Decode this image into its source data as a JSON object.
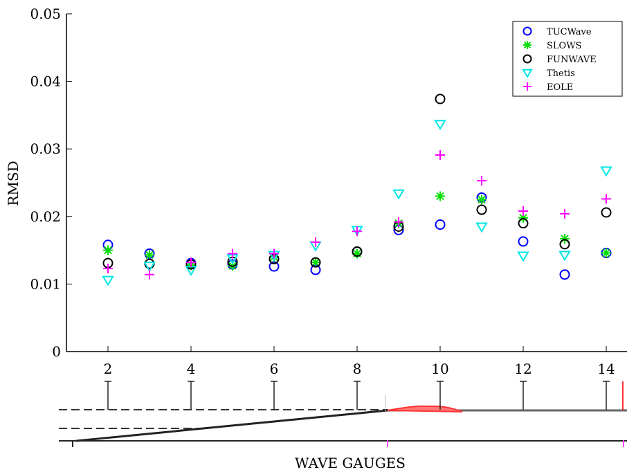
{
  "chart_data": {
    "type": "scatter",
    "ylabel": "RMSD",
    "xlabel": "WAVE GAUGES",
    "xlim": [
      1,
      14.5
    ],
    "ylim": [
      0,
      0.05
    ],
    "x_ticks": [
      "2",
      "4",
      "6",
      "8",
      "10",
      "12",
      "14"
    ],
    "x_tick_values": [
      2,
      4,
      6,
      8,
      10,
      12,
      14
    ],
    "y_ticks": [
      "0",
      "0.01",
      "0.02",
      "0.03",
      "0.04",
      "0.05"
    ],
    "y_tick_values": [
      0,
      0.01,
      0.02,
      0.03,
      0.04,
      0.05
    ],
    "legend_position": "top-right",
    "grid": false,
    "series": [
      {
        "name": "TUCWave",
        "marker": "circle",
        "color": "#0000ff",
        "x": [
          2,
          3,
          4,
          5,
          6,
          7,
          8,
          9,
          10,
          11,
          12,
          13,
          14
        ],
        "y": [
          0.0158,
          0.0145,
          0.0131,
          0.0129,
          0.0126,
          0.0121,
          0.0148,
          0.018,
          0.0188,
          0.0228,
          0.0163,
          0.0114,
          0.0146
        ]
      },
      {
        "name": "SLOWS",
        "marker": "asterisk",
        "color": "#00dd00",
        "x": [
          2,
          3,
          4,
          5,
          6,
          7,
          8,
          9,
          10,
          11,
          12,
          13,
          14
        ],
        "y": [
          0.015,
          0.0143,
          0.0128,
          0.0127,
          0.014,
          0.0132,
          0.0145,
          0.019,
          0.023,
          0.0225,
          0.0198,
          0.0167,
          0.0146
        ]
      },
      {
        "name": "FUNWAVE",
        "marker": "circle",
        "color": "#000000",
        "x": [
          2,
          3,
          4,
          5,
          6,
          7,
          8,
          9,
          10,
          11,
          12,
          13,
          14
        ],
        "y": [
          0.0131,
          0.013,
          0.0129,
          0.0133,
          0.0137,
          0.0132,
          0.0148,
          0.0185,
          0.0374,
          0.021,
          0.019,
          0.0159,
          0.0206
        ]
      },
      {
        "name": "Thetis",
        "marker": "triangle-down",
        "color": "#00e5e5",
        "x": [
          2,
          3,
          4,
          5,
          6,
          7,
          8,
          9,
          10,
          11,
          12,
          13,
          14
        ],
        "y": [
          0.0106,
          0.0127,
          0.0121,
          0.0138,
          0.0143,
          0.0157,
          0.018,
          0.0234,
          0.0337,
          0.0185,
          0.0142,
          0.0143,
          0.0268
        ]
      },
      {
        "name": "EOLE",
        "marker": "plus",
        "color": "#ff00ff",
        "x": [
          2,
          3,
          4,
          5,
          6,
          7,
          8,
          9,
          10,
          11,
          12,
          13,
          14
        ],
        "y": [
          0.0123,
          0.0114,
          0.0132,
          0.0145,
          0.0145,
          0.0162,
          0.0178,
          0.0192,
          0.0291,
          0.0253,
          0.0208,
          0.0204,
          0.0226
        ]
      }
    ]
  }
}
